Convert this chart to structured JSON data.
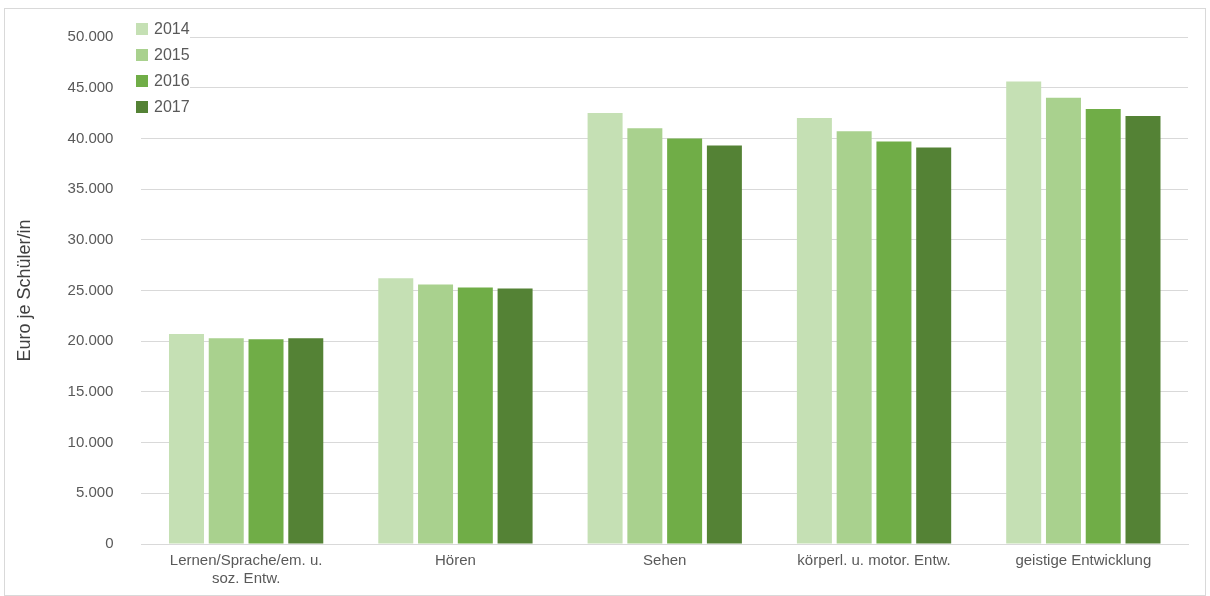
{
  "chart_data": {
    "type": "bar",
    "ylabel": "Euro je Schüler/in",
    "categories": [
      "Lernen/Sprache/em. u. soz. Entw.",
      "Hören",
      "Sehen",
      "körperl. u. motor. Entw.",
      "geistige Entwicklung"
    ],
    "series": [
      {
        "name": "2014",
        "color": "#c5e0b4",
        "values": [
          20700,
          26200,
          42500,
          42000,
          45600
        ]
      },
      {
        "name": "2015",
        "color": "#a9d18e",
        "values": [
          20300,
          25600,
          41000,
          40700,
          44000
        ]
      },
      {
        "name": "2016",
        "color": "#70ad47",
        "values": [
          20200,
          25300,
          40000,
          39700,
          42900
        ]
      },
      {
        "name": "2017",
        "color": "#548235",
        "values": [
          20300,
          25200,
          39300,
          39100,
          42200
        ]
      }
    ],
    "ylim": [
      0,
      50000
    ],
    "yticks": [
      0,
      {
        "value": 5000,
        "label": "5.000"
      },
      {
        "value": 10000,
        "label": "10.000"
      },
      {
        "value": 15000,
        "label": "15.000"
      },
      {
        "value": 20000,
        "label": "20.000"
      },
      {
        "value": 25000,
        "label": "25.000"
      },
      {
        "value": 30000,
        "label": "30.000"
      },
      {
        "value": 35000,
        "label": "35.000"
      },
      {
        "value": 40000,
        "label": "40.000"
      },
      {
        "value": 45000,
        "label": "45.000"
      },
      {
        "value": 50000,
        "label": "50.000"
      }
    ],
    "grid": "y",
    "legend": "top left"
  }
}
